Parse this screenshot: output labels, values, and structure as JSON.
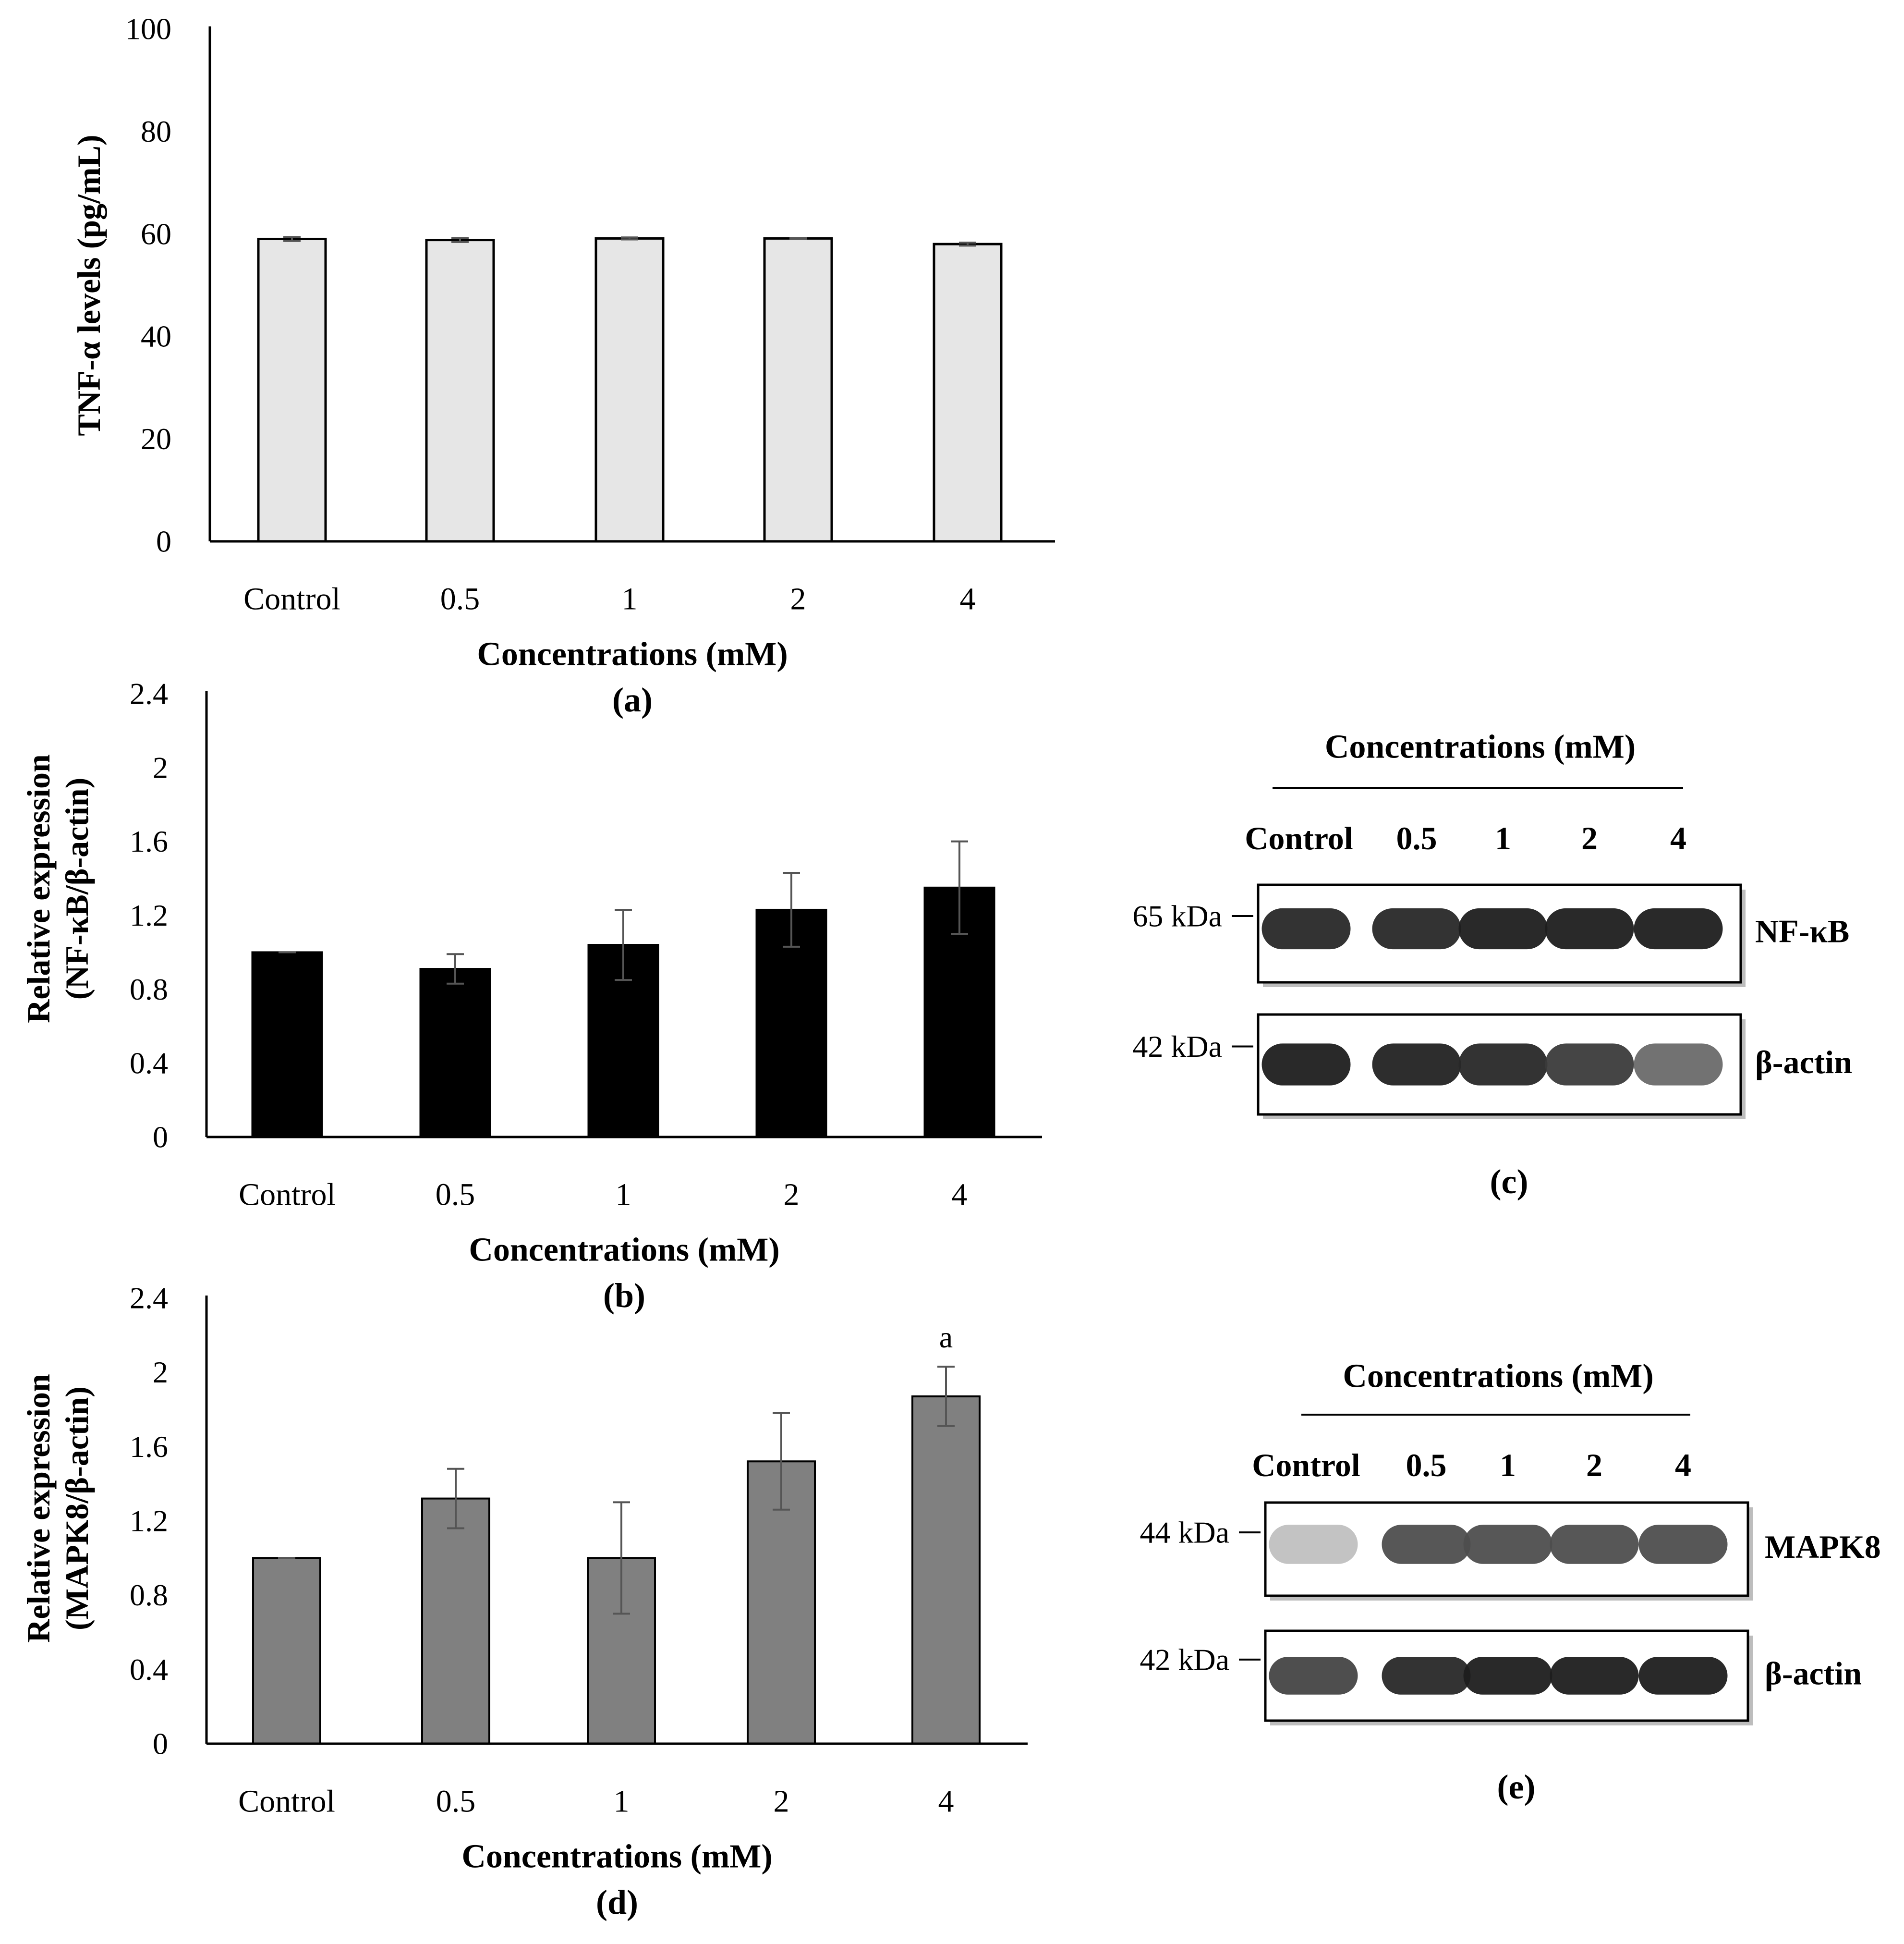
{
  "chart_data": [
    {
      "id": "a",
      "type": "bar",
      "panel_label": "(a)",
      "categories": [
        "Control",
        "0.5",
        "1",
        "2",
        "4"
      ],
      "values": [
        59,
        58.8,
        59.1,
        59.1,
        58
      ],
      "errors": [
        0.4,
        0.4,
        0.2,
        0.1,
        0.3
      ],
      "ylabel": "TNF-α levels (pg/mL)",
      "xlabel": "Concentrations (mM)",
      "ylim": [
        0,
        100
      ],
      "yticks": [
        0,
        20,
        40,
        60,
        80,
        100
      ],
      "ytick_labels": [
        "0",
        "20",
        "40",
        "60",
        "80",
        "100"
      ],
      "bar_color": "#e6e6e6",
      "bar_edge": "#000000",
      "annotations": [
        "",
        "",
        "",
        "",
        ""
      ]
    },
    {
      "id": "b",
      "type": "bar",
      "panel_label": "(b)",
      "categories": [
        "Control",
        "0.5",
        "1",
        "2",
        "4"
      ],
      "values": [
        1.0,
        0.91,
        1.04,
        1.23,
        1.35
      ],
      "errors": [
        0.0,
        0.08,
        0.19,
        0.2,
        0.25
      ],
      "ylabel_lines": [
        "Relative expression",
        "(NF-κB/β-actin)"
      ],
      "xlabel": "Concentrations (mM)",
      "ylim": [
        0,
        2.4
      ],
      "yticks": [
        0,
        0.4,
        0.8,
        1.2,
        1.6,
        2,
        2.4
      ],
      "ytick_labels": [
        "0",
        "0.4",
        "0.8",
        "1.2",
        "1.6",
        "2",
        "2.4"
      ],
      "bar_color": "#000000",
      "bar_edge": "#000000",
      "annotations": [
        "",
        "",
        "",
        "",
        ""
      ]
    },
    {
      "id": "d",
      "type": "bar",
      "panel_label": "(d)",
      "categories": [
        "Control",
        "0.5",
        "1",
        "2",
        "4"
      ],
      "values": [
        1.0,
        1.32,
        1.0,
        1.52,
        1.87
      ],
      "errors": [
        0.0,
        0.16,
        0.3,
        0.26,
        0.16
      ],
      "ylabel_lines": [
        "Relative expression",
        "(MAPK8/β-actin)"
      ],
      "xlabel": "Concentrations (mM)",
      "ylim": [
        0,
        2.4
      ],
      "yticks": [
        0,
        0.4,
        0.8,
        1.2,
        1.6,
        2,
        2.4
      ],
      "ytick_labels": [
        "0",
        "0.4",
        "0.8",
        "1.2",
        "1.6",
        "2",
        "2.4"
      ],
      "bar_color": "#808080",
      "bar_edge": "#000000",
      "annotations": [
        "",
        "",
        "",
        "",
        "a"
      ]
    }
  ],
  "blots": [
    {
      "id": "c",
      "panel_label": "(c)",
      "header": "Concentrations (mM)",
      "lanes": [
        "Control",
        "0.5",
        "1",
        "2",
        "4"
      ],
      "rows": [
        {
          "marker": "65 kDa",
          "protein": "NF-κB",
          "intensities": [
            0.95,
            0.95,
            1.0,
            1.0,
            1.0
          ]
        },
        {
          "marker": "42 kDa",
          "protein": "β-actin",
          "intensities": [
            1.0,
            0.98,
            0.95,
            0.85,
            0.6
          ]
        }
      ]
    },
    {
      "id": "e",
      "panel_label": "(e)",
      "header": "Concentrations (mM)",
      "lanes": [
        "Control",
        "0.5",
        "1",
        "2",
        "4"
      ],
      "rows": [
        {
          "marker": "44 kDa",
          "protein": "MAPK8",
          "intensities": [
            0.15,
            0.75,
            0.75,
            0.75,
            0.75
          ]
        },
        {
          "marker": "42 kDa",
          "protein": "β-actin",
          "intensities": [
            0.8,
            0.95,
            1.0,
            1.0,
            1.0
          ]
        }
      ]
    }
  ]
}
